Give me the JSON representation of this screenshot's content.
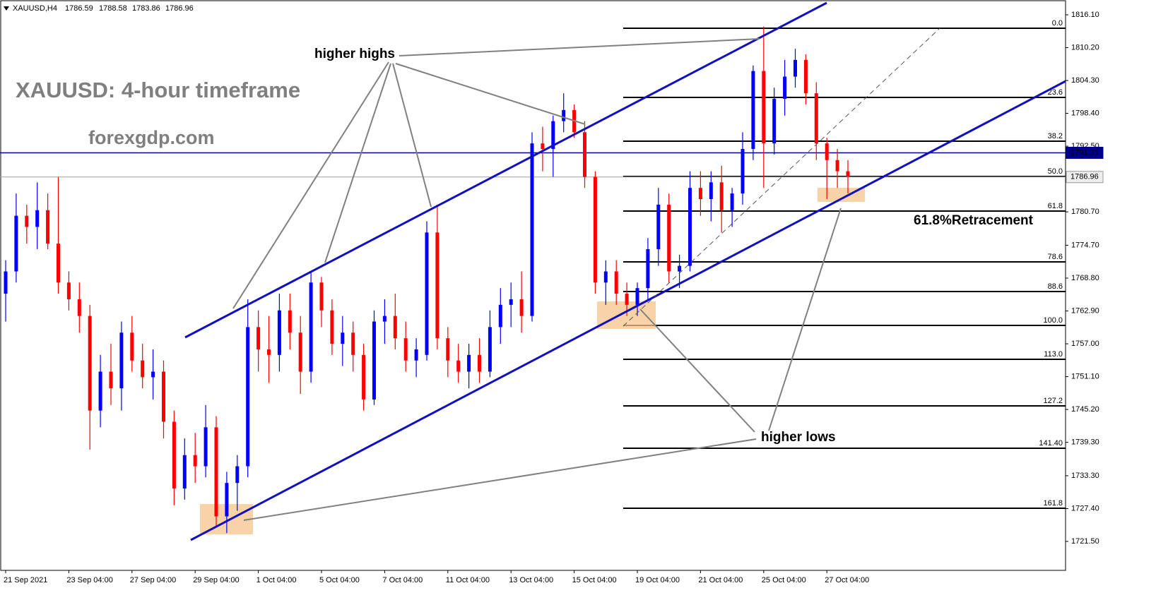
{
  "chart_data": {
    "type": "candlestick",
    "header_symbol": "XAUUSD,H4",
    "header_ohlc": [
      1786.59,
      1788.58,
      1783.86,
      1786.96
    ],
    "title": "XAUUSD: 4-hour timeframe",
    "subtitle": "forexgdp.com",
    "annotations": [
      "higher highs",
      "higher lows",
      "61.8%Retracement"
    ],
    "up_color": "#0000ff",
    "down_color": "#ff0000",
    "grid": false,
    "ylim": [
      1716.3,
      1818.76
    ],
    "yticks": [
      {
        "value": 1816.1,
        "label": "1816.10"
      },
      {
        "value": 1810.2,
        "label": "1810.20"
      },
      {
        "value": 1804.3,
        "label": "1804.30"
      },
      {
        "value": 1798.4,
        "label": "1798.40"
      },
      {
        "value": 1792.5,
        "label": "1792.50"
      },
      {
        "value": 1780.7,
        "label": "1780.70"
      },
      {
        "value": 1774.7,
        "label": "1774.70"
      },
      {
        "value": 1768.8,
        "label": "1768.80"
      },
      {
        "value": 1762.9,
        "label": "1762.90"
      },
      {
        "value": 1757.0,
        "label": "1757.00"
      },
      {
        "value": 1751.1,
        "label": "1751.10"
      },
      {
        "value": 1745.2,
        "label": "1745.20"
      },
      {
        "value": 1739.3,
        "label": "1739.30"
      },
      {
        "value": 1733.3,
        "label": "1733.30"
      },
      {
        "value": 1727.4,
        "label": "1727.40"
      },
      {
        "value": 1721.5,
        "label": "1721.50"
      }
    ],
    "price_lines": [
      {
        "value": 1791.31,
        "color": "#00008b"
      },
      {
        "value": 1786.96,
        "color": "#a0a0a0"
      }
    ],
    "fib_levels": [
      {
        "label": "0.0",
        "price": 1813.69
      },
      {
        "label": "23.6",
        "price": 1801.26
      },
      {
        "label": "38.2",
        "price": 1793.4
      },
      {
        "label": "50.0",
        "price": 1787.06
      },
      {
        "label": "61.8",
        "price": 1780.84
      },
      {
        "label": "78.6",
        "price": 1771.71
      },
      {
        "label": "88.6",
        "price": 1766.39
      },
      {
        "label": "100.0",
        "price": 1760.3
      },
      {
        "label": "113.0",
        "price": 1754.21
      },
      {
        "label": "127.2",
        "price": 1745.85
      },
      {
        "label": "141.40",
        "price": 1738.24
      },
      {
        "label": "161.8",
        "price": 1727.46
      }
    ],
    "categories": [
      "21 Sep 2021",
      null,
      null,
      null,
      null,
      null,
      "23 Sep 04:00",
      null,
      null,
      null,
      null,
      null,
      "27 Sep 04:00",
      null,
      null,
      null,
      null,
      null,
      "29 Sep 04:00",
      null,
      null,
      null,
      null,
      null,
      "1 Oct 04:00",
      null,
      null,
      null,
      null,
      null,
      "5 Oct 04:00",
      null,
      null,
      null,
      null,
      null,
      "7 Oct 04:00",
      null,
      null,
      null,
      null,
      null,
      "11 Oct 04:00",
      null,
      null,
      null,
      null,
      null,
      "13 Oct 04:00",
      null,
      null,
      null,
      null,
      null,
      "15 Oct 04:00",
      null,
      null,
      null,
      null,
      null,
      "19 Oct 04:00",
      null,
      null,
      null,
      null,
      null,
      "21 Oct 04:00",
      null,
      null,
      null,
      null,
      null,
      "25 Oct 04:00",
      null,
      null,
      null,
      null,
      null,
      "27 Oct 04:00",
      null,
      null
    ],
    "ohlc": [
      [
        1766,
        1772,
        1761,
        1770
      ],
      [
        1770,
        1784,
        1768,
        1780
      ],
      [
        1780,
        1782,
        1775,
        1778
      ],
      [
        1778,
        1786,
        1774,
        1781
      ],
      [
        1781,
        1784,
        1774,
        1775
      ],
      [
        1775,
        1787,
        1766,
        1768
      ],
      [
        1768,
        1770,
        1763,
        1765
      ],
      [
        1765,
        1768,
        1759,
        1762
      ],
      [
        1762,
        1764,
        1738,
        1745
      ],
      [
        1745,
        1755,
        1742,
        1752
      ],
      [
        1752,
        1757,
        1746,
        1749
      ],
      [
        1749,
        1761,
        1745,
        1759
      ],
      [
        1759,
        1762,
        1752,
        1754
      ],
      [
        1754,
        1757,
        1749,
        1751
      ],
      [
        1751,
        1756,
        1747,
        1752
      ],
      [
        1752,
        1754,
        1740,
        1743
      ],
      [
        1743,
        1745,
        1728,
        1731
      ],
      [
        1731,
        1740,
        1729,
        1737
      ],
      [
        1737,
        1741,
        1732,
        1735
      ],
      [
        1735,
        1746,
        1733,
        1742
      ],
      [
        1742,
        1744,
        1724,
        1726
      ],
      [
        1726,
        1734,
        1723,
        1732
      ],
      [
        1732,
        1737,
        1727,
        1735
      ],
      [
        1735,
        1765,
        1733,
        1760
      ],
      [
        1760,
        1763,
        1752,
        1756
      ],
      [
        1756,
        1762,
        1750,
        1755
      ],
      [
        1755,
        1766,
        1752,
        1763
      ],
      [
        1763,
        1766,
        1756,
        1759
      ],
      [
        1759,
        1762,
        1748,
        1752
      ],
      [
        1752,
        1770,
        1750,
        1768
      ],
      [
        1768,
        1769,
        1760,
        1763
      ],
      [
        1763,
        1765,
        1755,
        1757
      ],
      [
        1757,
        1762,
        1753,
        1759
      ],
      [
        1759,
        1761,
        1752,
        1755
      ],
      [
        1755,
        1757,
        1745,
        1747
      ],
      [
        1747,
        1763,
        1746,
        1761
      ],
      [
        1761,
        1765,
        1757,
        1762
      ],
      [
        1762,
        1766,
        1756,
        1758
      ],
      [
        1758,
        1761,
        1752,
        1754
      ],
      [
        1754,
        1758,
        1751,
        1756
      ],
      [
        1755,
        1779,
        1754,
        1777
      ],
      [
        1777,
        1782,
        1756,
        1758
      ],
      [
        1758,
        1760,
        1751,
        1754
      ],
      [
        1754,
        1757,
        1750,
        1752
      ],
      [
        1752,
        1757,
        1749,
        1755
      ],
      [
        1755,
        1758,
        1750,
        1752
      ],
      [
        1752,
        1763,
        1751,
        1760
      ],
      [
        1760,
        1767,
        1757,
        1764
      ],
      [
        1764,
        1768,
        1760,
        1765
      ],
      [
        1765,
        1770,
        1759,
        1762
      ],
      [
        1762,
        1795,
        1761,
        1793
      ],
      [
        1793,
        1796,
        1788,
        1792
      ],
      [
        1792,
        1798,
        1787,
        1797
      ],
      [
        1797,
        1802,
        1795,
        1799
      ],
      [
        1799,
        1800,
        1794,
        1795
      ],
      [
        1795,
        1797,
        1785,
        1787
      ],
      [
        1787,
        1788,
        1766,
        1768
      ],
      [
        1768,
        1772,
        1764,
        1770
      ],
      [
        1770,
        1772,
        1764,
        1766
      ],
      [
        1766,
        1768,
        1762,
        1764
      ],
      [
        1764,
        1768,
        1762,
        1767
      ],
      [
        1767,
        1776,
        1765,
        1774
      ],
      [
        1774,
        1785,
        1771,
        1782
      ],
      [
        1782,
        1784,
        1768,
        1770
      ],
      [
        1770,
        1773,
        1767,
        1771
      ],
      [
        1771,
        1788,
        1770,
        1785
      ],
      [
        1785,
        1788,
        1780,
        1783
      ],
      [
        1783,
        1788,
        1779,
        1786
      ],
      [
        1786,
        1789,
        1777,
        1781
      ],
      [
        1781,
        1785,
        1778,
        1784
      ],
      [
        1784,
        1795,
        1782,
        1792
      ],
      [
        1792,
        1807,
        1790,
        1806
      ],
      [
        1806,
        1814,
        1785,
        1793
      ],
      [
        1793,
        1803,
        1791,
        1801
      ],
      [
        1801,
        1808,
        1798,
        1805
      ],
      [
        1805,
        1810,
        1803,
        1808
      ],
      [
        1808,
        1809,
        1800,
        1802
      ],
      [
        1802,
        1804,
        1790,
        1793
      ],
      [
        1793,
        1794,
        1783,
        1790
      ],
      [
        1790,
        1792,
        1785,
        1788
      ],
      [
        1788,
        1790,
        1784,
        1787
      ]
    ]
  }
}
